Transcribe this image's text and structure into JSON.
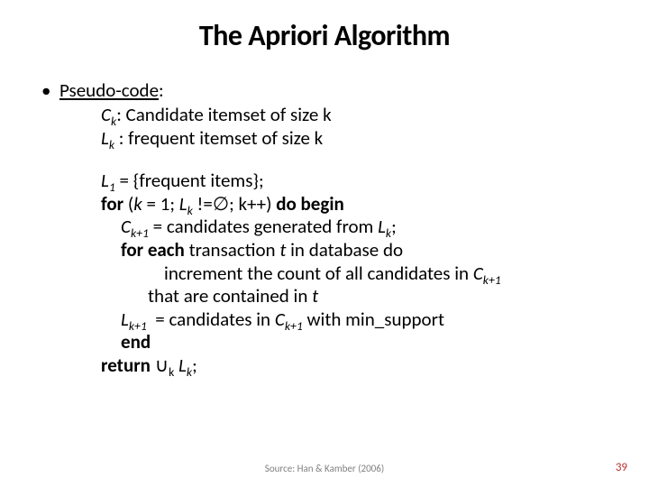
{
  "title": "The Apriori Algorithm",
  "bullet_glyph": "•",
  "pseudo_label": "Pseudo-code",
  "colon": ":",
  "defs": {
    "c_var": "C",
    "c_sub": "k",
    "c_text": ": Candidate itemset of size k",
    "l_var": "L",
    "l_sub": "k",
    "l_text": " : frequent itemset of size k"
  },
  "algo": {
    "l1_var": "L",
    "l1_sub": "1",
    "l1_text": " = {frequent items};",
    "for_kw": "for",
    "for_open": " (",
    "for_k": "k",
    "for_eq": " = 1; ",
    "for_lk_var": "L",
    "for_lk_sub": "k",
    "for_cond": " !=∅; k++) ",
    "dobegin": "do begin",
    "ck1_var": "C",
    "ck1_sub": "k+1",
    "ck1_text": " = candidates generated from ",
    "ck1_lk_var": "L",
    "ck1_lk_sub": "k",
    "ck1_end": ";",
    "foreach_kw": "for each",
    "foreach_text": " transaction ",
    "foreach_t": "t",
    "foreach_rest": " in database do",
    "inc_text1": "increment the count of all candidates in ",
    "inc_ck_var": "C",
    "inc_ck_sub": "k+1",
    "inc_text2": "that are contained in ",
    "inc_t": "t",
    "lk1_var": "L",
    "lk1_sub": "k+1",
    "lk1_eq": "  = candidates in ",
    "lk1_ck_var": "C",
    "lk1_ck_sub": "k+1",
    "lk1_rest": " with min_support",
    "end_kw": "end",
    "return_kw": "return",
    "return_sym": " ∪",
    "return_sub": "k",
    "return_sp": " ",
    "return_lk_var": "L",
    "return_lk_sub": "k",
    "return_end": ";"
  },
  "source": "Source: Han & Kamber (2006)",
  "pagenum": "39",
  "colors": {
    "text": "#000000",
    "bg": "#ffffff",
    "src": "#808080",
    "pagenum": "#b93030"
  }
}
